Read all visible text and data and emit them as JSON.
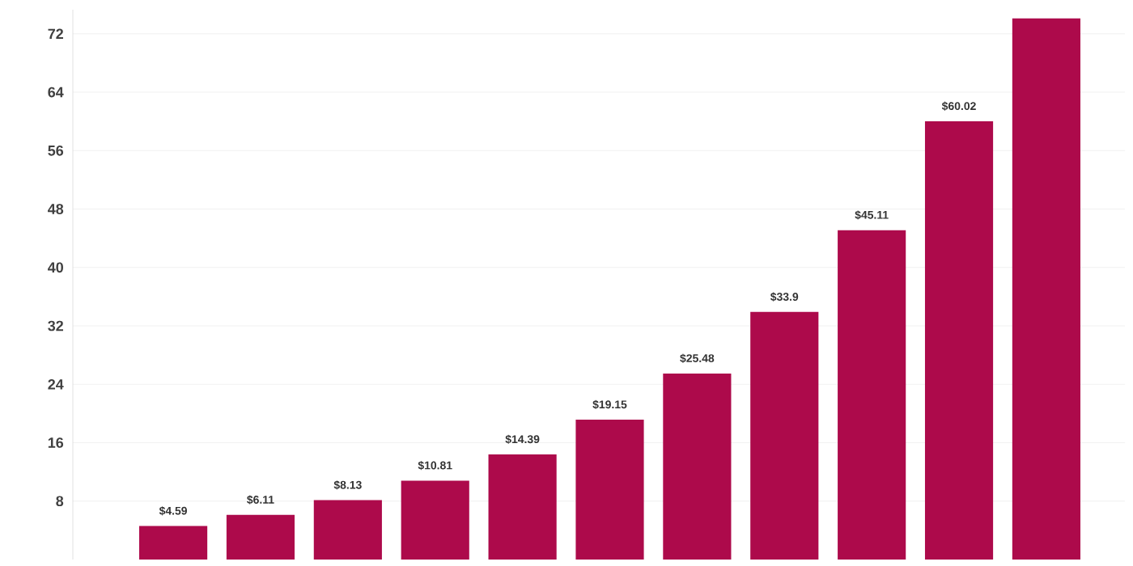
{
  "chart_data": {
    "type": "bar",
    "categories": [
      null,
      null,
      null,
      null,
      null,
      null,
      null,
      null,
      null,
      null,
      null
    ],
    "values": [
      4.59,
      6.11,
      8.13,
      10.81,
      14.39,
      19.15,
      25.48,
      33.9,
      45.11,
      60.02,
      74.1
    ],
    "value_labels": [
      "$4.59",
      "$6.11",
      "$8.13",
      "$10.81",
      "$14.39",
      "$19.15",
      "$25.48",
      "$33.9",
      "$45.11",
      "$60.02",
      null
    ],
    "color": "#ad0a4b",
    "ylim": [
      0,
      75.3
    ],
    "yticks": [
      8,
      16,
      24,
      32,
      40,
      48,
      56,
      64,
      72
    ],
    "grid": "y",
    "tick_labels": "y"
  }
}
